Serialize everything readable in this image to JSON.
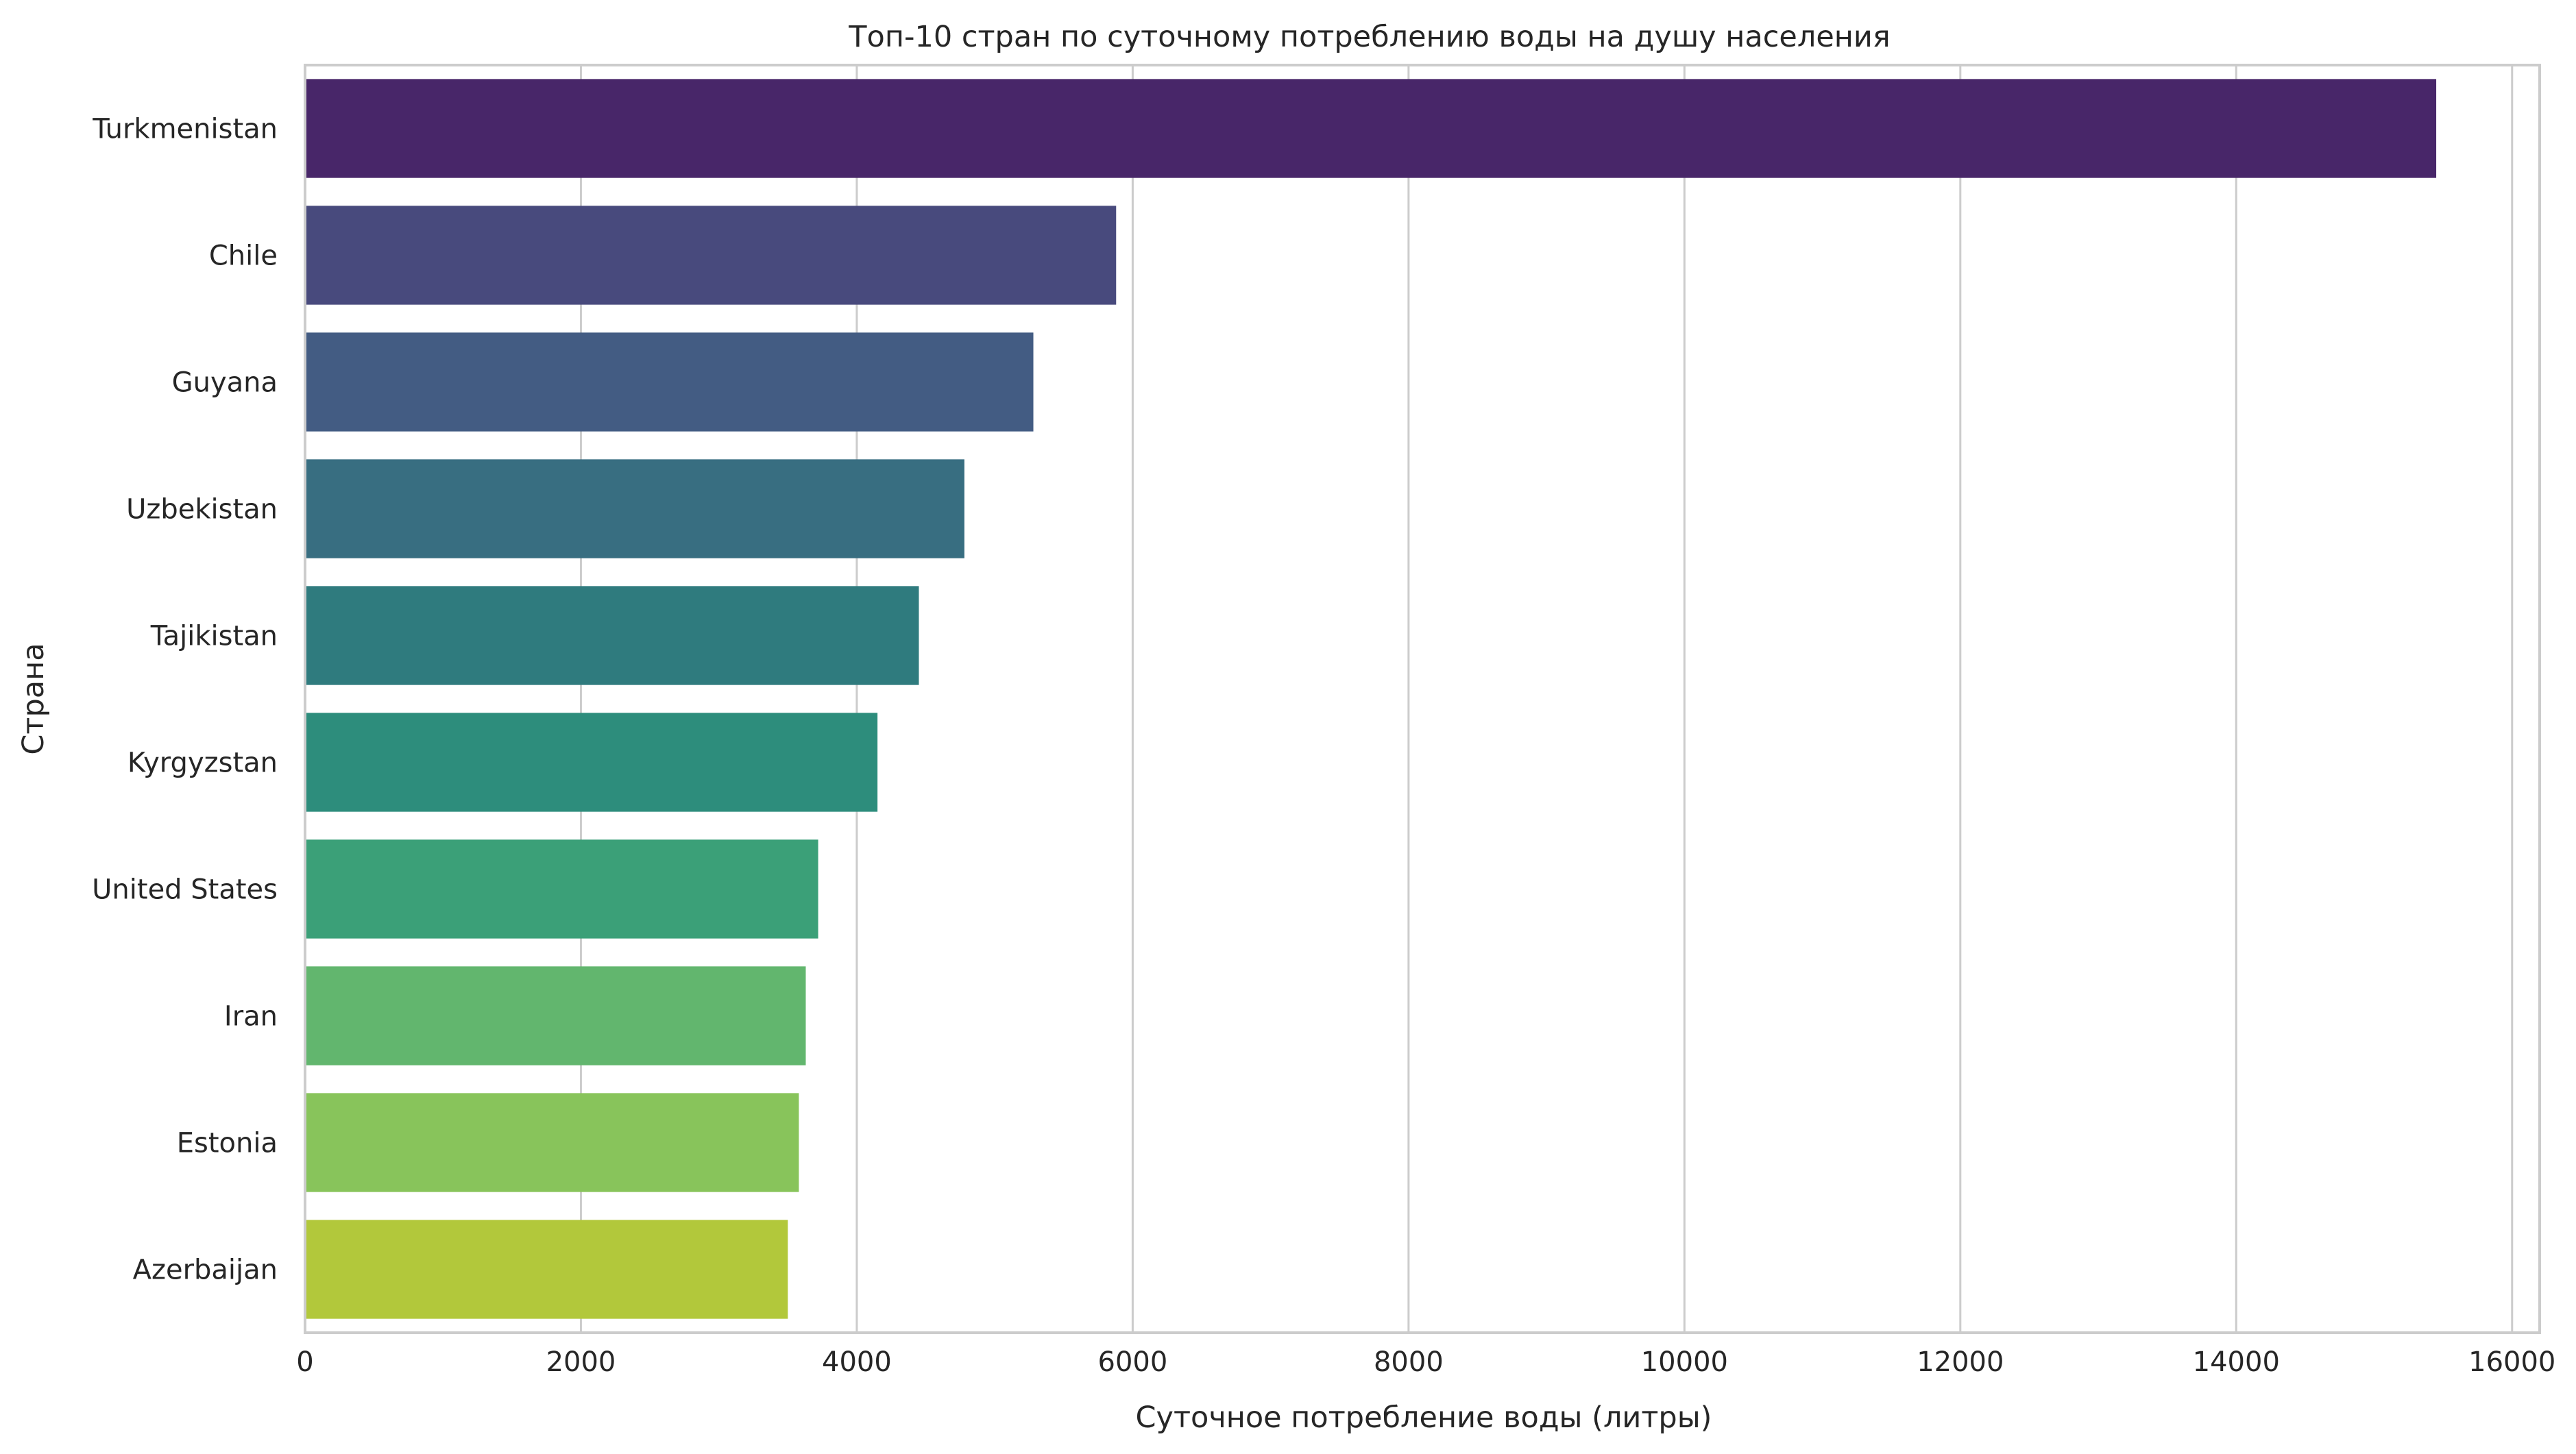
{
  "chart_data": {
    "type": "bar",
    "orientation": "horizontal",
    "title": "Топ-10 стран по суточному потреблению воды на душу населения",
    "xlabel": "Суточное потребление воды (литры)",
    "ylabel": "Страна",
    "xlim": [
      0,
      16200
    ],
    "xticks": [
      0,
      2000,
      4000,
      6000,
      8000,
      10000,
      12000,
      14000,
      16000
    ],
    "xtick_labels": [
      "0",
      "2000",
      "4000",
      "6000",
      "8000",
      "10000",
      "12000",
      "14000",
      "16000"
    ],
    "grid": true,
    "categories": [
      "Turkmenistan",
      "Chile",
      "Guyana",
      "Uzbekistan",
      "Tajikistan",
      "Kyrgyzstan",
      "United States",
      "Iran",
      "Estonia",
      "Azerbaijan"
    ],
    "values": [
      15450,
      5880,
      5280,
      4780,
      4450,
      4150,
      3720,
      3630,
      3580,
      3500
    ],
    "colors": [
      "#482669",
      "#484a7d",
      "#435c83",
      "#386e81",
      "#2f7b7e",
      "#2d8d7c",
      "#3ba078",
      "#62b66e",
      "#88c45b",
      "#b2c83b"
    ]
  }
}
